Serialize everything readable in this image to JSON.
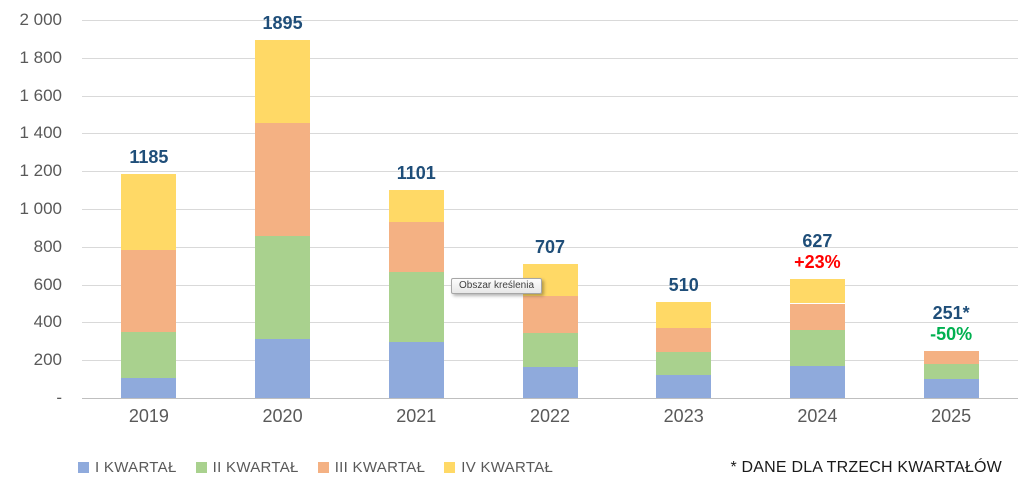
{
  "chart_data": {
    "type": "stacked-bar",
    "categories": [
      "2019",
      "2020",
      "2021",
      "2022",
      "2023",
      "2024",
      "2025"
    ],
    "series": [
      {
        "name": "I KWARTAŁ",
        "color": "#8FAADC",
        "values": [
          105,
          310,
          295,
          165,
          120,
          170,
          100
        ]
      },
      {
        "name": "II KWARTAŁ",
        "color": "#A9D18E",
        "values": [
          245,
          545,
          370,
          180,
          125,
          190,
          78
        ]
      },
      {
        "name": "III KWARTAŁ",
        "color": "#F4B183",
        "values": [
          435,
          600,
          265,
          195,
          123,
          140,
          73
        ]
      },
      {
        "name": "IV KWARTAŁ",
        "color": "#FFD966",
        "values": [
          400,
          440,
          171,
          167,
          142,
          127,
          0
        ]
      }
    ],
    "totals": [
      "1185",
      "1895",
      "1101",
      "707",
      "510",
      "627",
      "251*"
    ],
    "annotations": [
      {
        "category": "2024",
        "text": "+23%",
        "color": "#FF0000"
      },
      {
        "category": "2025",
        "text": "-50%",
        "color": "#00B050"
      }
    ],
    "ylim": [
      0,
      2000
    ],
    "ytick_interval": 200,
    "ytick_labels": [
      "-",
      "200",
      "400",
      "600",
      "800",
      "1 000",
      "1 200",
      "1 400",
      "1 600",
      "1 800",
      "2 000"
    ],
    "grid": "horizontal",
    "legend_position": "bottom",
    "total_label_color": "#1F4E79",
    "axis_text_color": "#595959"
  },
  "tooltip": {
    "text": "Obszar kreślenia"
  },
  "footnote": {
    "text": "* DANE DLA TRZECH KWARTAŁÓW"
  }
}
